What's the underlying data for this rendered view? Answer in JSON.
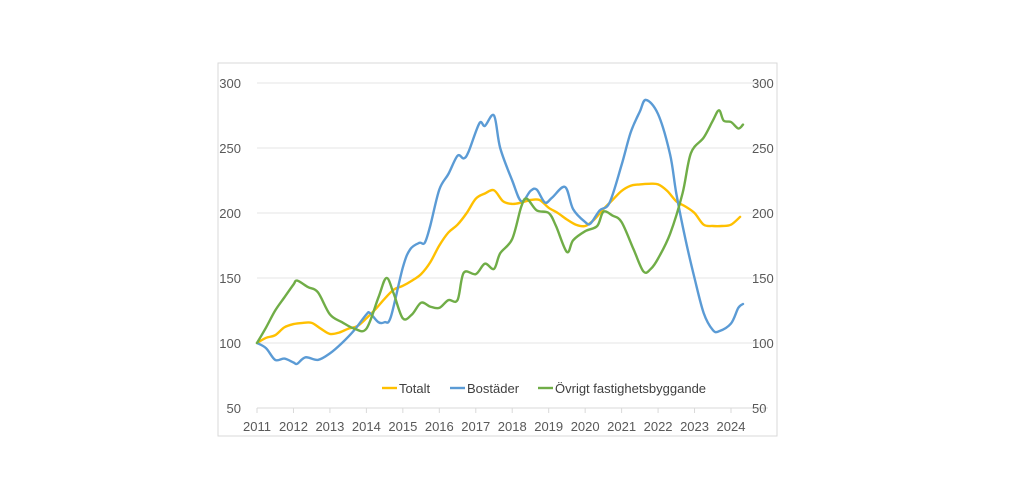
{
  "chart_data": {
    "type": "line",
    "title": "",
    "xlabel": "",
    "ylabel": "",
    "xlim": [
      2011,
      2024.9
    ],
    "ylim": [
      50,
      300
    ],
    "y_ticks": [
      50,
      100,
      150,
      200,
      250,
      300
    ],
    "x_ticks": [
      2011,
      2012,
      2013,
      2014,
      2015,
      2016,
      2017,
      2018,
      2019,
      2020,
      2021,
      2022,
      2023,
      2024
    ],
    "secondary_y_axis": {
      "ylim": [
        50,
        300
      ],
      "ticks": [
        50,
        100,
        150,
        200,
        250,
        300
      ]
    },
    "grid": "horizontal",
    "legend_position": "bottom-inside",
    "series": [
      {
        "name": "Totalt",
        "color": "#FFC000",
        "x": [
          2011,
          2011.25,
          2011.5,
          2011.75,
          2012,
          2012.25,
          2012.5,
          2012.75,
          2013,
          2013.25,
          2013.5,
          2013.75,
          2014,
          2014.25,
          2014.5,
          2014.75,
          2015,
          2015.25,
          2015.5,
          2015.75,
          2016,
          2016.25,
          2016.5,
          2016.75,
          2017,
          2017.25,
          2017.5,
          2017.75,
          2018,
          2018.25,
          2018.5,
          2018.75,
          2019,
          2019.25,
          2019.5,
          2019.75,
          2020,
          2020.25,
          2020.5,
          2020.75,
          2021,
          2021.25,
          2021.5,
          2021.75,
          2022,
          2022.25,
          2022.5,
          2022.75,
          2023,
          2023.25,
          2023.5,
          2023.75,
          2024,
          2024.25
        ],
        "y": [
          100,
          104,
          106,
          112,
          114.5,
          115.5,
          115.5,
          111,
          107,
          108,
          111,
          113,
          119,
          126,
          134,
          141,
          144,
          148,
          153,
          162,
          175,
          185,
          191,
          200,
          211,
          215,
          217.5,
          209,
          207,
          208,
          210,
          210,
          204,
          200,
          195,
          191,
          190,
          195,
          203,
          210,
          217,
          221,
          222,
          222.5,
          222,
          217,
          209,
          205,
          200,
          191,
          190,
          190,
          191,
          197
        ]
      },
      {
        "name": "Bostäder",
        "color": "#5B9BD5",
        "x": [
          2011,
          2011.25,
          2011.5,
          2011.75,
          2012,
          2012.1,
          2012.33,
          2012.67,
          2013,
          2013.33,
          2013.67,
          2014,
          2014.1,
          2014.33,
          2014.5,
          2014.67,
          2015,
          2015.2,
          2015.45,
          2015.6,
          2015.75,
          2016,
          2016.25,
          2016.5,
          2016.67,
          2016.8,
          2017.1,
          2017.25,
          2017.5,
          2017.67,
          2018,
          2018.25,
          2018.5,
          2018.67,
          2018.9,
          2019.1,
          2019.45,
          2019.67,
          2020,
          2020.15,
          2020.4,
          2020.67,
          2021,
          2021.25,
          2021.5,
          2021.67,
          2022,
          2022.33,
          2022.5,
          2022.75,
          2023,
          2023.25,
          2023.5,
          2023.67,
          2024,
          2024.2,
          2024.33
        ],
        "y": [
          100,
          96,
          87,
          88,
          85,
          84,
          89,
          87,
          92,
          100,
          110,
          122,
          123,
          116,
          116,
          120,
          158,
          172,
          177,
          177,
          190,
          218,
          230,
          244,
          242,
          247,
          269,
          267,
          275,
          250,
          225,
          209,
          217,
          218,
          208,
          212,
          220,
          203,
          193,
          192,
          202,
          208,
          237,
          262,
          278,
          287,
          276,
          245,
          215,
          180,
          150,
          123,
          110,
          109,
          115,
          127,
          130
        ]
      },
      {
        "name": "Övrigt fastighetsbyggande",
        "color": "#70AD47",
        "x": [
          2011,
          2011.25,
          2011.5,
          2011.75,
          2012,
          2012.1,
          2012.4,
          2012.67,
          2013,
          2013.33,
          2013.67,
          2014,
          2014.33,
          2014.55,
          2014.75,
          2015,
          2015.25,
          2015.5,
          2015.75,
          2016,
          2016.25,
          2016.5,
          2016.67,
          2017,
          2017.25,
          2017.5,
          2017.67,
          2018,
          2018.25,
          2018.4,
          2018.67,
          2019,
          2019.2,
          2019.5,
          2019.67,
          2020,
          2020.33,
          2020.5,
          2020.75,
          2021,
          2021.33,
          2021.6,
          2021.8,
          2022,
          2022.33,
          2022.67,
          2022.9,
          2023.25,
          2023.5,
          2023.67,
          2023.8,
          2024,
          2024.2,
          2024.33
        ],
        "y": [
          100,
          112,
          125,
          135,
          145,
          148,
          143,
          139,
          122,
          116,
          111,
          111,
          135,
          150,
          138,
          119,
          122,
          131,
          128,
          127,
          133,
          133,
          154,
          153,
          161,
          157,
          169,
          180,
          205,
          211,
          202,
          200,
          190,
          170,
          179,
          186,
          190,
          201,
          198,
          193,
          172,
          155,
          157,
          165,
          184,
          215,
          246,
          258,
          271,
          279,
          271,
          270,
          265,
          268
        ]
      }
    ]
  }
}
